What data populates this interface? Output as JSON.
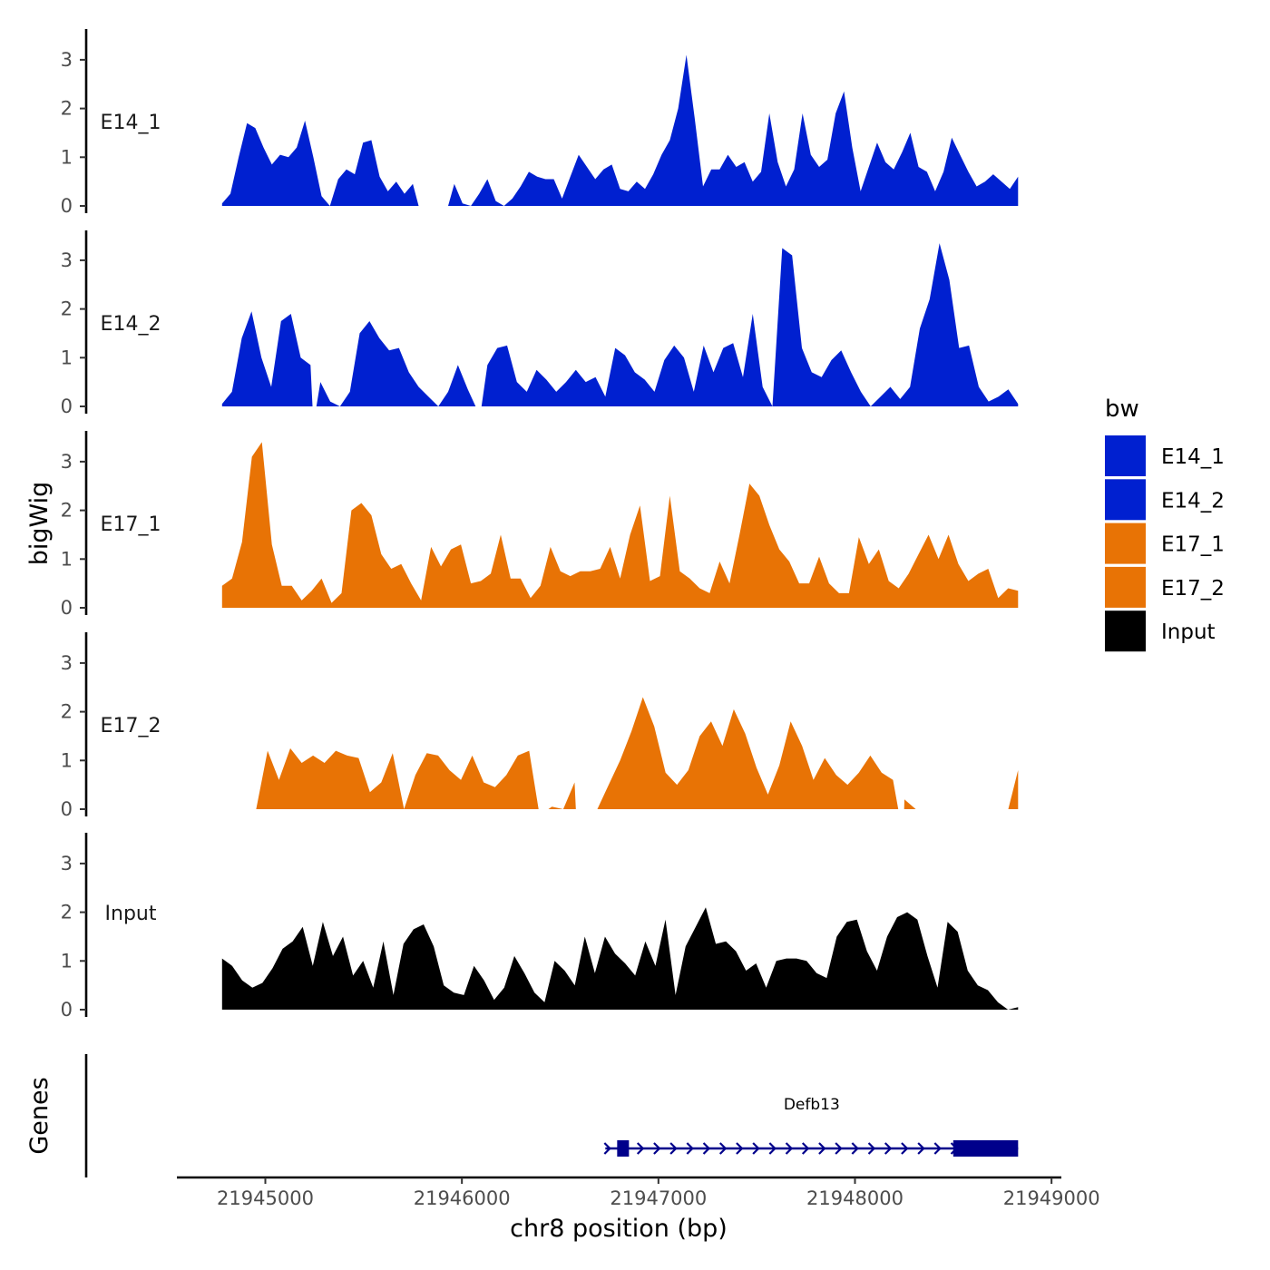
{
  "chart_data": {
    "type": "area",
    "ylabel": "bigWig",
    "genes_label": "Genes",
    "xlabel": "chr8 position (bp)",
    "xlim": [
      21944550,
      21949050
    ],
    "data_x_range": [
      21944780,
      21948830
    ],
    "x_ticks": [
      21945000,
      21946000,
      21947000,
      21948000,
      21949000
    ],
    "x_tick_labels": [
      "21945000",
      "21946000",
      "21947000",
      "21948000",
      "21949000"
    ],
    "ylim": [
      0,
      3.6
    ],
    "y_ticks": [
      0,
      1,
      2,
      3
    ],
    "y_tick_labels": [
      "0",
      "1",
      "2",
      "3"
    ],
    "tracks": [
      {
        "name": "E14_1",
        "color": "#0020d0",
        "values": [
          0.05,
          0.25,
          1.0,
          1.7,
          1.6,
          1.2,
          0.85,
          1.05,
          1.0,
          1.2,
          1.75,
          1.0,
          0.2,
          0.0,
          0.55,
          0.75,
          0.65,
          1.3,
          1.35,
          0.6,
          0.3,
          0.5,
          0.25,
          0.45,
          0.2,
          0.5,
          0.1,
          0.1,
          0.45,
          0.05,
          0.0,
          0.25,
          0.55,
          0.1,
          0.0,
          0.15,
          0.4,
          0.7,
          0.6,
          0.55,
          0.55,
          0.15,
          0.6,
          1.05,
          0.8,
          0.55,
          0.75,
          0.85,
          0.35,
          0.3,
          0.5,
          0.35,
          0.65,
          1.05,
          1.35,
          2.0,
          3.1,
          1.8,
          0.4,
          0.75,
          0.75,
          1.05,
          0.8,
          0.9,
          0.5,
          0.7,
          1.9,
          0.9,
          0.4,
          0.75,
          1.9,
          1.05,
          0.8,
          0.95,
          1.9,
          2.35,
          1.2,
          0.3,
          0.8,
          1.3,
          0.9,
          0.75,
          1.1,
          1.5,
          0.8,
          0.7,
          0.3,
          0.7,
          1.4,
          1.05,
          0.7,
          0.4,
          0.5,
          0.65,
          0.5,
          0.35,
          0.6
        ],
        "gaps": [
          [
            21945780,
            21945930
          ]
        ]
      },
      {
        "name": "E14_2",
        "color": "#0020d0",
        "values": [
          0.05,
          0.3,
          1.4,
          1.95,
          1.0,
          0.4,
          1.75,
          1.9,
          1.0,
          0.85,
          0.5,
          0.1,
          0.0,
          0.3,
          1.5,
          1.75,
          1.4,
          1.15,
          1.2,
          0.7,
          0.4,
          0.2,
          0.0,
          0.3,
          0.85,
          0.35,
          0.7,
          0.85,
          1.2,
          1.25,
          0.5,
          0.3,
          0.75,
          0.55,
          0.3,
          0.5,
          0.75,
          0.5,
          0.6,
          0.2,
          1.2,
          1.05,
          0.7,
          0.55,
          0.3,
          0.95,
          1.25,
          1.0,
          0.3,
          1.25,
          0.7,
          1.2,
          1.3,
          0.6,
          1.9,
          0.4,
          0.0,
          3.25,
          3.1,
          1.2,
          0.7,
          0.6,
          0.95,
          1.15,
          0.7,
          0.3,
          0.0,
          0.2,
          0.4,
          0.15,
          0.4,
          1.6,
          2.2,
          3.35,
          2.6,
          1.2,
          1.25,
          0.4,
          0.1,
          0.2,
          0.35,
          0.05
        ],
        "gaps": [
          [
            21945240,
            21945260
          ],
          [
            21946070,
            21946100
          ]
        ]
      },
      {
        "name": "E17_1",
        "color": "#e87305",
        "values": [
          0.45,
          0.6,
          1.35,
          3.1,
          3.4,
          1.3,
          0.45,
          0.45,
          0.15,
          0.35,
          0.6,
          0.1,
          0.3,
          2.0,
          2.15,
          1.9,
          1.1,
          0.8,
          0.9,
          0.5,
          0.15,
          1.25,
          0.85,
          1.2,
          1.3,
          0.5,
          0.55,
          0.7,
          1.5,
          0.6,
          0.6,
          0.2,
          0.45,
          1.25,
          0.75,
          0.65,
          0.75,
          0.75,
          0.8,
          1.25,
          0.6,
          1.5,
          2.1,
          0.55,
          0.65,
          2.3,
          0.75,
          0.6,
          0.4,
          0.3,
          0.95,
          0.5,
          1.5,
          2.55,
          2.3,
          1.7,
          1.2,
          0.95,
          0.5,
          0.5,
          1.05,
          0.5,
          0.3,
          0.3,
          1.45,
          0.9,
          1.2,
          0.55,
          0.4,
          0.7,
          1.1,
          1.5,
          1.0,
          1.5,
          0.9,
          0.55,
          0.7,
          0.8,
          0.2,
          0.4,
          0.35
        ],
        "gaps": []
      },
      {
        "name": "E17_2",
        "color": "#e87305",
        "values": [
          0.0,
          0.0,
          0.0,
          0.0,
          1.2,
          0.6,
          1.25,
          0.95,
          1.1,
          0.95,
          1.2,
          1.1,
          1.05,
          0.35,
          0.55,
          1.15,
          0.0,
          0.7,
          1.15,
          1.1,
          0.8,
          0.6,
          1.1,
          0.55,
          0.45,
          0.7,
          1.1,
          1.2,
          0.2,
          0.05,
          0.0,
          0.55,
          0.0,
          0.0,
          0.5,
          1.0,
          1.6,
          2.3,
          1.7,
          0.75,
          0.5,
          0.8,
          1.5,
          1.8,
          1.3,
          2.05,
          1.55,
          0.85,
          0.3,
          0.9,
          1.8,
          1.3,
          0.6,
          1.05,
          0.7,
          0.5,
          0.75,
          1.1,
          0.75,
          0.6,
          0.2,
          0.0,
          0.0,
          0.45,
          0.0,
          0.0,
          0.0,
          0.75,
          0.0,
          0.0,
          0.8
        ],
        "gaps": [
          [
            21946390,
            21946440
          ],
          [
            21946580,
            21946650
          ],
          [
            21948220,
            21948250
          ],
          [
            21948340,
            21948450
          ],
          [
            21948620,
            21948780
          ]
        ]
      },
      {
        "name": "Input",
        "color": "#000000",
        "values": [
          1.05,
          0.9,
          0.6,
          0.45,
          0.55,
          0.85,
          1.25,
          1.4,
          1.7,
          0.9,
          1.8,
          1.1,
          1.5,
          0.7,
          1.0,
          0.45,
          1.4,
          0.3,
          1.35,
          1.65,
          1.75,
          1.3,
          0.5,
          0.35,
          0.3,
          0.9,
          0.6,
          0.2,
          0.45,
          1.1,
          0.75,
          0.35,
          0.15,
          1.0,
          0.8,
          0.5,
          1.5,
          0.75,
          1.5,
          1.15,
          0.95,
          0.7,
          1.4,
          0.9,
          1.85,
          0.3,
          1.3,
          1.7,
          2.1,
          1.35,
          1.4,
          1.2,
          0.8,
          0.95,
          0.45,
          1.0,
          1.05,
          1.05,
          1.0,
          0.75,
          0.65,
          1.5,
          1.8,
          1.85,
          1.2,
          0.8,
          1.5,
          1.9,
          2.0,
          1.85,
          1.1,
          0.45,
          1.8,
          1.6,
          0.8,
          0.5,
          0.4,
          0.15,
          0.0,
          0.05
        ],
        "gaps": []
      }
    ],
    "legend": {
      "title": "bw",
      "position": "right",
      "entries": [
        {
          "label": "E14_1",
          "color": "#0020d0"
        },
        {
          "label": "E14_2",
          "color": "#0020d0"
        },
        {
          "label": "E17_1",
          "color": "#e87305"
        },
        {
          "label": "E17_2",
          "color": "#e87305"
        },
        {
          "label": "Input",
          "color": "#000000"
        }
      ]
    },
    "gene": {
      "name": "Defb13",
      "color": "#00008b",
      "strand": "+",
      "start": 21946730,
      "end": 21948830,
      "exons": [
        [
          21946790,
          21946850
        ],
        [
          21948500,
          21948830
        ]
      ]
    }
  }
}
